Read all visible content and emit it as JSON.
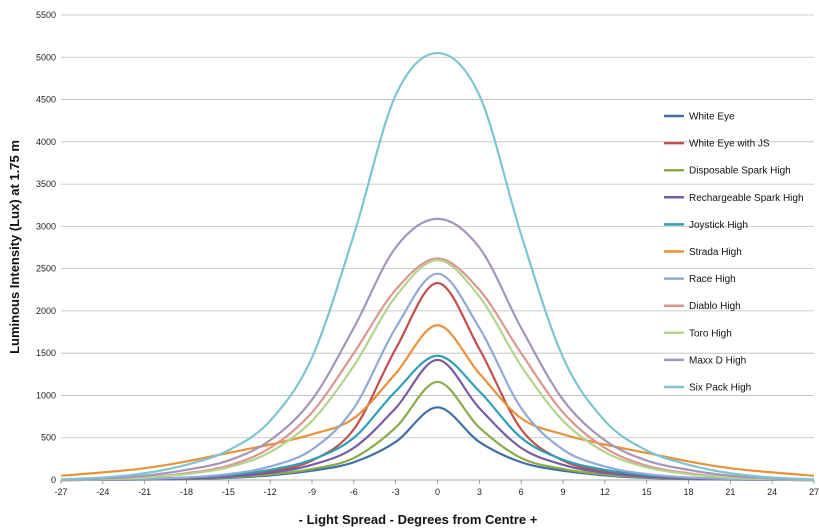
{
  "chart_data": {
    "type": "line",
    "title": "",
    "xlabel": "- Light Spread - Degrees from Centre +",
    "ylabel": "Luminous Intensity (Lux) at 1.75 m",
    "xlim": [
      -27,
      27
    ],
    "ylim": [
      0,
      5500
    ],
    "x_ticks": [
      "-27",
      "-24",
      "-21",
      "-18",
      "-15",
      "-12",
      "-9",
      "-6",
      "-3",
      "0",
      "3",
      "6",
      "9",
      "12",
      "15",
      "18",
      "21",
      "24",
      "27"
    ],
    "y_ticks": [
      "0",
      "500",
      "1000",
      "1500",
      "2000",
      "2500",
      "3000",
      "3500",
      "4000",
      "4500",
      "5000",
      "5500"
    ],
    "grid": "horizontal",
    "legend_position": "right",
    "x": [
      -27,
      -24,
      -21,
      -18,
      -15,
      -12,
      -9,
      -6,
      -3,
      0,
      3,
      6,
      9,
      12,
      15,
      18,
      21,
      24,
      27
    ],
    "series": [
      {
        "name": "White Eye",
        "color": "#3f6fa6",
        "values": [
          0,
          2,
          5,
          12,
          25,
          55,
          110,
          210,
          450,
          860,
          450,
          210,
          110,
          55,
          25,
          12,
          5,
          2,
          0
        ]
      },
      {
        "name": "White Eye with JS",
        "color": "#c0504d",
        "values": [
          0,
          3,
          8,
          20,
          45,
          100,
          230,
          600,
          1550,
          2330,
          1550,
          600,
          230,
          100,
          45,
          20,
          8,
          3,
          0
        ]
      },
      {
        "name": "Disposable Spark High",
        "color": "#8aab4a",
        "values": [
          0,
          2,
          6,
          14,
          30,
          65,
          130,
          260,
          620,
          1160,
          620,
          260,
          130,
          65,
          30,
          14,
          6,
          2,
          0
        ]
      },
      {
        "name": "Rechargeable Spark High",
        "color": "#7a5aa3",
        "values": [
          0,
          3,
          8,
          18,
          40,
          85,
          180,
          380,
          850,
          1420,
          850,
          380,
          180,
          85,
          40,
          18,
          8,
          3,
          0
        ]
      },
      {
        "name": "Joystick High",
        "color": "#2f9fb5",
        "values": [
          0,
          5,
          12,
          28,
          60,
          120,
          240,
          500,
          1050,
          1470,
          1050,
          500,
          240,
          120,
          60,
          28,
          12,
          5,
          0
        ]
      },
      {
        "name": "Strada High",
        "color": "#e8923a",
        "values": [
          50,
          90,
          140,
          220,
          320,
          420,
          540,
          730,
          1260,
          1830,
          1260,
          730,
          540,
          420,
          320,
          220,
          140,
          90,
          50
        ]
      },
      {
        "name": "Race High",
        "color": "#92a9d6",
        "values": [
          0,
          5,
          12,
          30,
          70,
          160,
          360,
          850,
          1800,
          2440,
          1800,
          850,
          360,
          160,
          70,
          30,
          12,
          5,
          0
        ]
      },
      {
        "name": "Diablo High",
        "color": "#dc9690",
        "values": [
          2,
          10,
          30,
          80,
          170,
          380,
          800,
          1500,
          2250,
          2620,
          2250,
          1500,
          800,
          380,
          170,
          80,
          30,
          10,
          2
        ]
      },
      {
        "name": "Toro High",
        "color": "#b5d38d",
        "values": [
          2,
          10,
          28,
          70,
          150,
          330,
          700,
          1350,
          2170,
          2600,
          2170,
          1350,
          700,
          330,
          150,
          70,
          28,
          10,
          2
        ]
      },
      {
        "name": "Maxx D High",
        "color": "#a495bb",
        "values": [
          5,
          18,
          50,
          120,
          230,
          470,
          950,
          1800,
          2750,
          3090,
          2750,
          1800,
          950,
          470,
          230,
          120,
          50,
          18,
          5
        ]
      },
      {
        "name": "Six Pack High",
        "color": "#7fc4d3",
        "values": [
          8,
          30,
          80,
          180,
          350,
          700,
          1450,
          2900,
          4550,
          5050,
          4550,
          2900,
          1450,
          700,
          350,
          180,
          80,
          30,
          8
        ]
      }
    ]
  }
}
